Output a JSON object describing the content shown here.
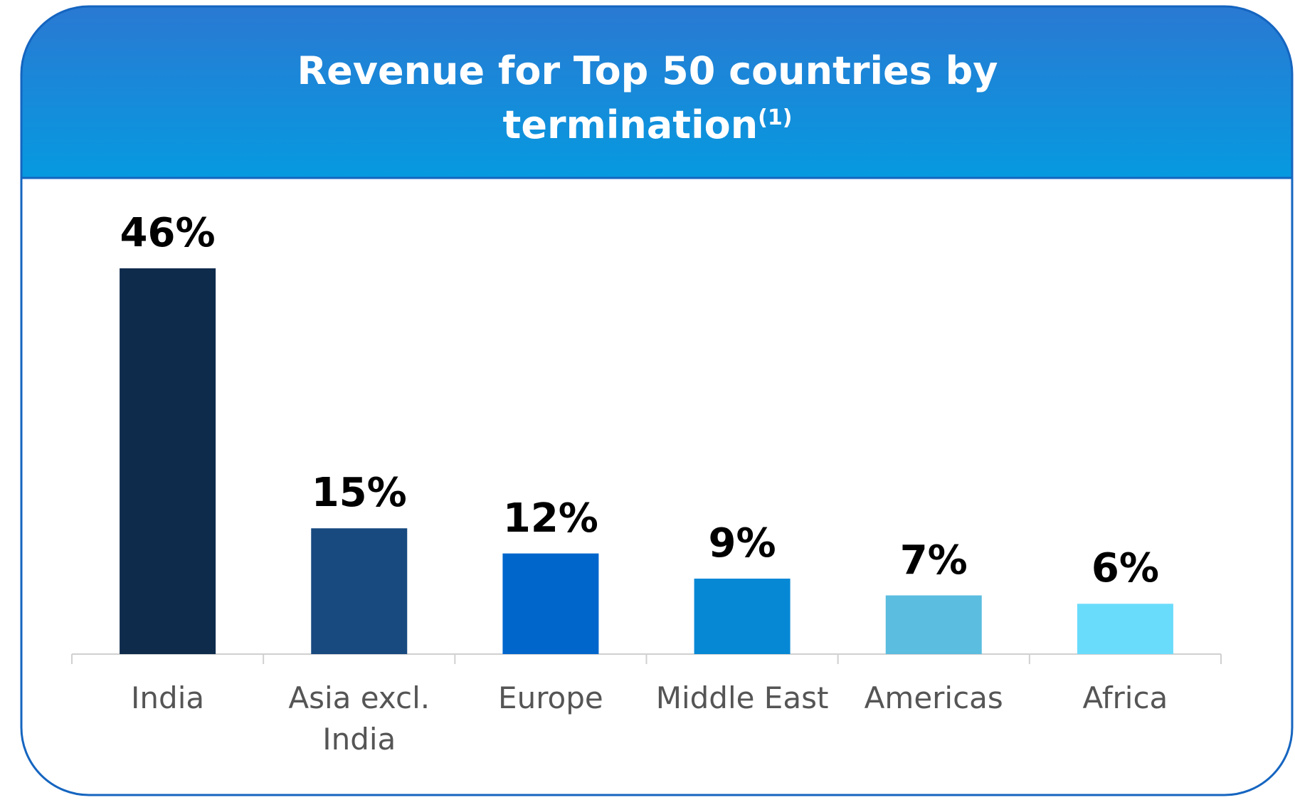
{
  "chart_data": {
    "type": "bar",
    "title": "Revenue for Top 50 countries by termination",
    "title_note": "(1)",
    "categories": [
      "India",
      "Asia excl. India",
      "Europe",
      "Middle East",
      "Americas",
      "Africa"
    ],
    "values": [
      46,
      15,
      12,
      9,
      7,
      6
    ],
    "value_labels": [
      "46%",
      "15%",
      "12%",
      "9%",
      "7%",
      "6%"
    ],
    "colors": [
      "#0f2b4c",
      "#184a80",
      "#0066cc",
      "#0788d4",
      "#5bbde0",
      "#6adcfb"
    ]
  }
}
